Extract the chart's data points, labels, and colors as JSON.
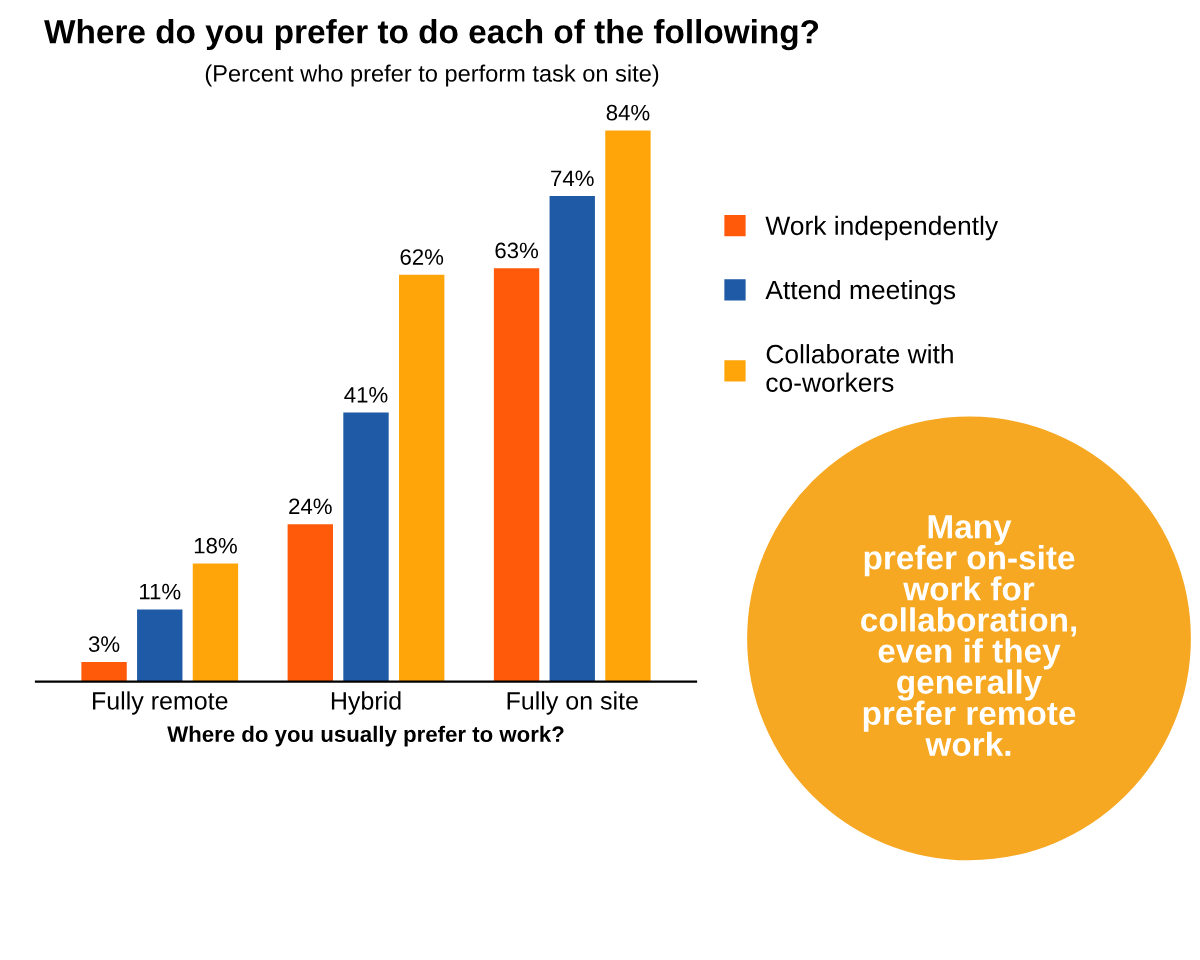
{
  "chart_data": {
    "type": "bar",
    "title": "Where do you prefer to do each of the following?",
    "subtitle": "(Percent who prefer to perform task on site)",
    "xlabel": "Where do you usually prefer to work?",
    "categories": [
      "Fully remote",
      "Hybrid",
      "Fully on site"
    ],
    "series": [
      {
        "name": "Work independently",
        "color": "#ff5a0a",
        "values": [
          3,
          24,
          63
        ],
        "value_labels": [
          "3%",
          "24%",
          "63%"
        ]
      },
      {
        "name": "Attend meetings",
        "color": "#1f5aa6",
        "values": [
          11,
          41,
          74
        ],
        "value_labels": [
          "11%",
          "41%",
          "74%"
        ]
      },
      {
        "name": "Collaborate with\nco-workers",
        "color": "#ffa50a",
        "values": [
          18,
          62,
          84
        ],
        "value_labels": [
          "18%",
          "62%",
          "84%"
        ]
      }
    ],
    "legend": "right",
    "grid": false,
    "annotations": [
      "Many\nprefer on-site\nwork for\ncollaboration,\neven if they\ngenerally\nprefer remote\nwork."
    ]
  }
}
